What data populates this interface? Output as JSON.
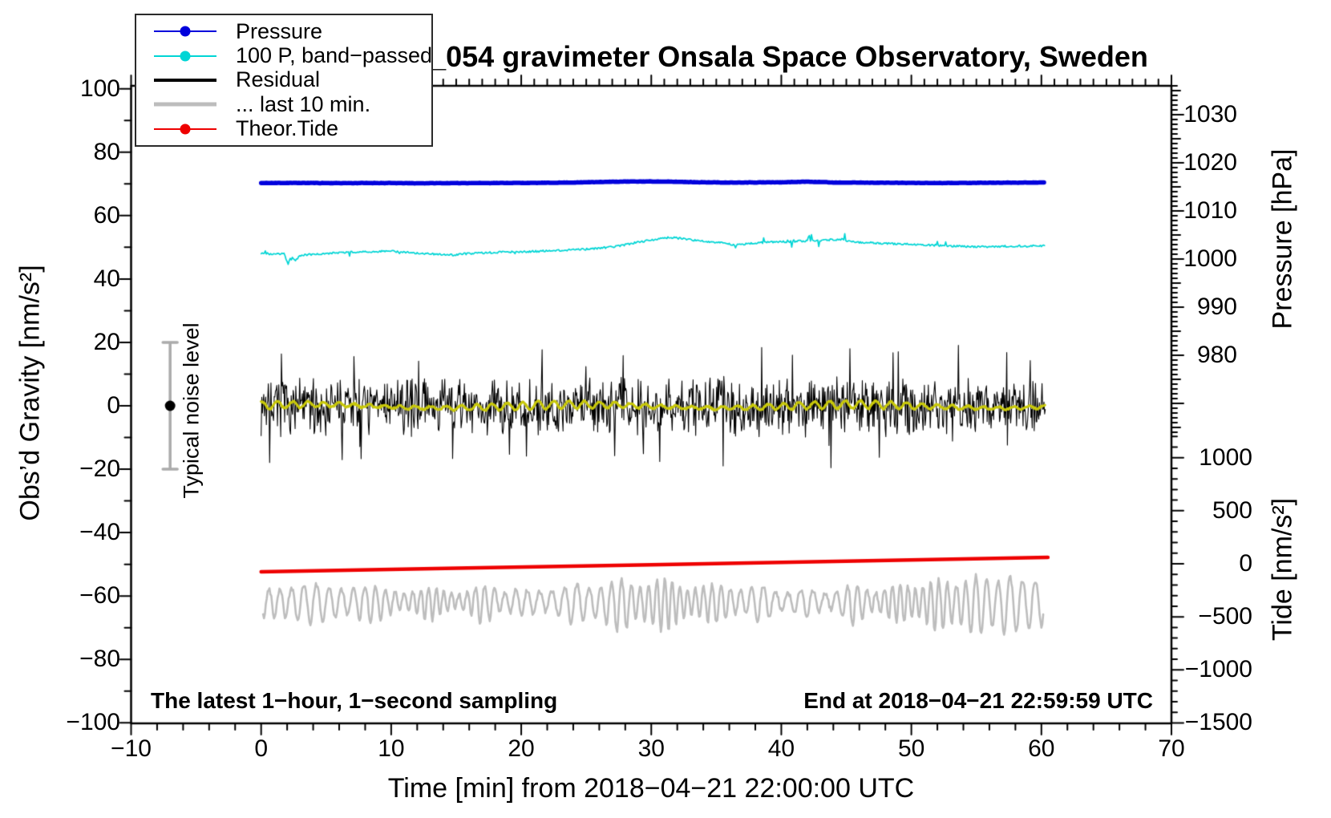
{
  "title": "SCG_054 gravimeter Onsala Space Observatory, Sweden",
  "annotations": {
    "sampling_note": "The latest 1−hour, 1−second sampling",
    "end_note": "End at 2018−04−21 22:59:59 UTC",
    "noise_label": "Typical noise level"
  },
  "legend": {
    "items": [
      {
        "label": "Pressure",
        "color": "#0000dc",
        "line_width": 2.5,
        "marker": true
      },
      {
        "label": "100 P, band−passed",
        "color": "#00d5d5",
        "line_width": 2.5,
        "marker": true
      },
      {
        "label": "Residual",
        "color": "#000000",
        "line_width": 4,
        "marker": false
      },
      {
        "label": "... last 10 min.",
        "color": "#bdbdbd",
        "line_width": 5,
        "marker": false
      },
      {
        "label": "Theor.Tide",
        "color": "#ee0000",
        "line_width": 2.5,
        "marker": true
      }
    ]
  },
  "axes": {
    "x": {
      "label": "Time [min] from 2018−04−21 22:00:00 UTC",
      "range": [
        -10,
        70
      ],
      "major_step": 10,
      "minor_step_bottom": 2,
      "minor_step_top": 1,
      "major_ticks": [
        {
          "v": -10,
          "label": "−10"
        },
        {
          "v": 0,
          "label": "0"
        },
        {
          "v": 10,
          "label": "10"
        },
        {
          "v": 20,
          "label": "20"
        },
        {
          "v": 30,
          "label": "30"
        },
        {
          "v": 40,
          "label": "40"
        },
        {
          "v": 50,
          "label": "50"
        },
        {
          "v": 60,
          "label": "60"
        },
        {
          "v": 70,
          "label": "70"
        }
      ]
    },
    "y_left": {
      "label": "Obs’d Gravity [nm/s²]",
      "range": [
        -100,
        100
      ],
      "major_step": 20,
      "minor_step": 10,
      "major_ticks": [
        {
          "v": -100,
          "label": "−100"
        },
        {
          "v": -80,
          "label": "−80"
        },
        {
          "v": -60,
          "label": "−60"
        },
        {
          "v": -40,
          "label": "−40"
        },
        {
          "v": -20,
          "label": "−20"
        },
        {
          "v": 0,
          "label": "0"
        },
        {
          "v": 20,
          "label": "20"
        },
        {
          "v": 40,
          "label": "40"
        },
        {
          "v": 60,
          "label": "60"
        },
        {
          "v": 80,
          "label": "80"
        },
        {
          "v": 100,
          "label": "100"
        }
      ]
    },
    "y_right_pressure": {
      "label": "Pressure [hPa]",
      "range": [
        964,
        1036
      ],
      "major_step": 10,
      "medium_step": 5,
      "minor_step": 1,
      "major_ticks": [
        {
          "v": 1030,
          "label": "1030"
        },
        {
          "v": 1020,
          "label": "1020"
        },
        {
          "v": 1010,
          "label": "1010"
        },
        {
          "v": 1000,
          "label": "1000"
        },
        {
          "v": 990,
          "label": "990"
        },
        {
          "v": 980,
          "label": "980"
        }
      ]
    },
    "y_right_tide": {
      "label": "Tide [nm/s²]",
      "range": [
        -1500,
        1200
      ],
      "major_step": 500,
      "minor_step": 100,
      "major_ticks": [
        {
          "v": 1000,
          "label": "1000"
        },
        {
          "v": 500,
          "label": "500"
        },
        {
          "v": 0,
          "label": "0"
        },
        {
          "v": -500,
          "label": "−500"
        },
        {
          "v": -1000,
          "label": "−1000"
        },
        {
          "v": -1500,
          "label": "−1500"
        }
      ]
    }
  },
  "noise_marker": {
    "time_min": -7,
    "center_value": 0,
    "half_range": 20,
    "bar_color": "#ababab",
    "dot_color": "#000000"
  },
  "chart_data": {
    "type": "line",
    "title": "SCG_054 gravimeter Onsala Space Observatory, Sweden",
    "xlabel": "Time [min] from 2018−04−21 22:00:00 UTC",
    "x_range_min": [
      -10,
      70
    ],
    "grid": false,
    "series": [
      {
        "name": "theor_tide",
        "legend": "Theor.Tide",
        "axis": "tide",
        "color": "#ee0000",
        "width": 4.5,
        "gen": "line",
        "points": [
          [
            0,
            -75
          ],
          [
            15,
            -42
          ],
          [
            30,
            -9
          ],
          [
            45,
            25
          ],
          [
            60.5,
            60
          ]
        ]
      },
      {
        "name": "last_10_min",
        "legend": "... last 10 min.",
        "axis": "gravity",
        "color": "#bdbdbd",
        "width": 2.6,
        "gen": "osc",
        "seed": 42,
        "t_range": [
          0.15,
          60.2
        ],
        "center": -61.3,
        "base_amp": 2.6,
        "amp_mod": 1.1,
        "period_min": 0.78,
        "dip_gain": 1.5,
        "noise": 1.4,
        "events": [
          [
            4,
            1.5
          ],
          [
            8.5,
            2.0
          ],
          [
            13,
            2.5
          ],
          [
            17,
            3.2
          ],
          [
            20,
            1.5
          ],
          [
            24,
            2.2
          ],
          [
            27.5,
            3.0
          ],
          [
            31,
            3.2
          ],
          [
            35,
            2.0
          ],
          [
            38.5,
            2.5
          ],
          [
            42,
            2.0
          ],
          [
            45.5,
            3.5
          ],
          [
            49,
            2.5
          ],
          [
            52,
            3.4
          ],
          [
            55,
            4.0
          ],
          [
            57.5,
            3.4
          ],
          [
            59.5,
            2.5
          ]
        ]
      },
      {
        "name": "band_passed_pressure_x100",
        "legend": "100 P, band−passed",
        "axis": "gravity",
        "color": "#00d5d5",
        "width": 1.7,
        "gen": "smooth",
        "seed": 23,
        "step": 0.08,
        "noise": 0.3,
        "spike_region": [
          38,
          46
        ],
        "spike_prob": 0.05,
        "spike_amp": 2.2,
        "global_spike_prob": 0.012,
        "global_spike_amp": 1.4,
        "points": [
          [
            0,
            48.2
          ],
          [
            1,
            47.8
          ],
          [
            1.8,
            47.9
          ],
          [
            2.05,
            44.6
          ],
          [
            2.3,
            47.2
          ],
          [
            2.6,
            45.8
          ],
          [
            3,
            47.4
          ],
          [
            4,
            47.8
          ],
          [
            5,
            48.1
          ],
          [
            6,
            48.3
          ],
          [
            7,
            48.5
          ],
          [
            8,
            48.6
          ],
          [
            9,
            48.7
          ],
          [
            10,
            48.8
          ],
          [
            11,
            48.5
          ],
          [
            12,
            48.2
          ],
          [
            13,
            47.9
          ],
          [
            14,
            47.7
          ],
          [
            15,
            47.6
          ],
          [
            15.5,
            47.9
          ],
          [
            16,
            48.0
          ],
          [
            17,
            48.2
          ],
          [
            18,
            48.4
          ],
          [
            19,
            48.5
          ],
          [
            20,
            48.6
          ],
          [
            21,
            48.7
          ],
          [
            22,
            48.9
          ],
          [
            23,
            49.0
          ],
          [
            24,
            49.2
          ],
          [
            25,
            49.4
          ],
          [
            26,
            49.7
          ],
          [
            27,
            50.1
          ],
          [
            28,
            50.8
          ],
          [
            29,
            51.6
          ],
          [
            30,
            52.3
          ],
          [
            31,
            52.9
          ],
          [
            31.5,
            53.1
          ],
          [
            32,
            52.9
          ],
          [
            33,
            52.4
          ],
          [
            34,
            51.9
          ],
          [
            35,
            51.6
          ],
          [
            36,
            51.0
          ],
          [
            36.5,
            50.8
          ],
          [
            37,
            51.0
          ],
          [
            38,
            51.3
          ],
          [
            39,
            51.6
          ],
          [
            40,
            51.7
          ],
          [
            41,
            51.9
          ],
          [
            42,
            52.0
          ],
          [
            43,
            52.2
          ],
          [
            44,
            52.4
          ],
          [
            44.8,
            52.6
          ],
          [
            45,
            52.0
          ],
          [
            46,
            51.6
          ],
          [
            47,
            51.4
          ],
          [
            48,
            51.2
          ],
          [
            49,
            51.1
          ],
          [
            50,
            51.0
          ],
          [
            51,
            50.8
          ],
          [
            52,
            50.6
          ],
          [
            53,
            50.4
          ],
          [
            54,
            50.3
          ],
          [
            55,
            50.2
          ],
          [
            56,
            50.2
          ],
          [
            57,
            50.3
          ],
          [
            58,
            50.4
          ],
          [
            59,
            50.4
          ],
          [
            60,
            50.5
          ],
          [
            60.3,
            50.8
          ]
        ]
      },
      {
        "name": "pressure",
        "legend": "Pressure",
        "axis": "pressure",
        "color": "#0000dc",
        "width": 5.5,
        "gen": "smooth",
        "seed": 11,
        "step": 0.1,
        "noise": 0.035,
        "points": [
          [
            0,
            1015.8
          ],
          [
            3,
            1015.82
          ],
          [
            6,
            1015.78
          ],
          [
            9,
            1015.8
          ],
          [
            12,
            1015.75
          ],
          [
            15,
            1015.78
          ],
          [
            18,
            1015.8
          ],
          [
            21,
            1015.82
          ],
          [
            24,
            1015.9
          ],
          [
            26,
            1016.02
          ],
          [
            28,
            1016.1
          ],
          [
            30,
            1016.12
          ],
          [
            32,
            1016.05
          ],
          [
            34,
            1015.95
          ],
          [
            36,
            1015.9
          ],
          [
            38,
            1015.92
          ],
          [
            40,
            1015.95
          ],
          [
            42,
            1016.08
          ],
          [
            43,
            1016.02
          ],
          [
            44,
            1015.9
          ],
          [
            46,
            1015.88
          ],
          [
            48,
            1015.85
          ],
          [
            50,
            1015.82
          ],
          [
            52,
            1015.8
          ],
          [
            54,
            1015.82
          ],
          [
            56,
            1015.85
          ],
          [
            58,
            1015.88
          ],
          [
            60.3,
            1015.9
          ]
        ]
      },
      {
        "name": "residual",
        "legend": "Residual",
        "axis": "gravity",
        "color": "#000000",
        "width": 1.1,
        "gen": "noise",
        "seed": 7,
        "t_range": [
          0,
          60.3
        ],
        "center": 0,
        "typical_amplitude": 9,
        "spike_amplitude_min": 11,
        "spike_amplitude_max": 20,
        "spike_prob": 0.022,
        "samples": 1200
      },
      {
        "name": "residual_smoothed",
        "legend": "",
        "axis": "gravity",
        "color": "#c8c80a",
        "width": 3.2,
        "gen": "wiggle",
        "seed": 3,
        "t_range": [
          0,
          60.3
        ],
        "center": -0.15,
        "amp": 1.15,
        "period_min": 1.18,
        "drift_amp": 0.55,
        "drift_period_min": 21,
        "noise": 0.5
      }
    ]
  }
}
